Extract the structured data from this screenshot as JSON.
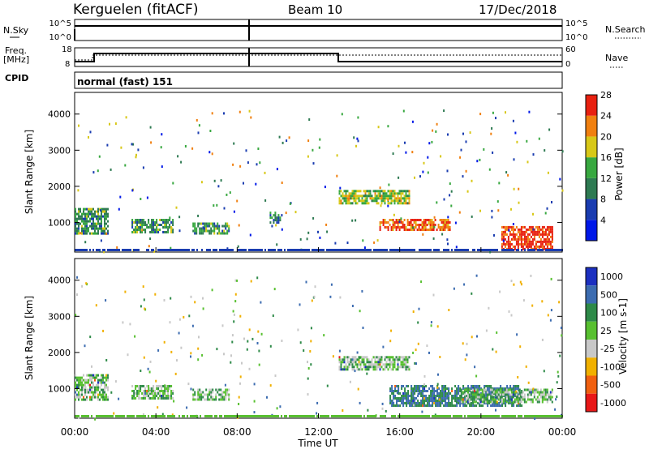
{
  "header": {
    "station": "Kerguelen (fitACF)",
    "beam": "Beam 10",
    "date": "17/Dec/2018"
  },
  "top_panel": {
    "nsky_label": "N.Sky",
    "nsky_ticks": [
      "10^5",
      "10^0"
    ],
    "nsearch_label": "N.Search",
    "nsearch_ticks": [
      "10^5",
      "10^0"
    ],
    "freq_label_line1": "Freq.",
    "freq_label_line2": "[MHz]",
    "freq_ticks": [
      "18",
      "8"
    ],
    "nave_label": "Nave",
    "nave_ticks": [
      "60",
      "0"
    ],
    "cpid_label": "CPID",
    "cpid_value": "normal (fast) 151"
  },
  "chart_data": [
    {
      "type": "heatmap",
      "name": "power",
      "ylabel": "Slant Range [km]",
      "ylim": [
        180,
        4600
      ],
      "yticks": [
        1000,
        2000,
        3000,
        4000
      ],
      "xlim": [
        0,
        24
      ],
      "colorbar": {
        "label": "Power [dB]",
        "ticks": [
          "4",
          "8",
          "12",
          "16",
          "20",
          "24",
          "28"
        ],
        "colors": [
          "#0018e8",
          "#1a3cb0",
          "#2e7a52",
          "#38a840",
          "#d8c818",
          "#f08010",
          "#e82010"
        ]
      },
      "regions": [
        {
          "t0": 0.0,
          "t1": 1.6,
          "r0": 700,
          "r1": 1400,
          "level": 14
        },
        {
          "t0": 2.8,
          "t1": 4.8,
          "r0": 700,
          "r1": 1100,
          "level": 14
        },
        {
          "t0": 5.8,
          "t1": 7.6,
          "r0": 700,
          "r1": 1000,
          "level": 14
        },
        {
          "t0": 9.6,
          "t1": 10.2,
          "r0": 1000,
          "r1": 1300,
          "level": 12
        },
        {
          "t0": 13.0,
          "t1": 16.5,
          "r0": 1500,
          "r1": 1900,
          "level": 18
        },
        {
          "t0": 15.0,
          "t1": 18.5,
          "r0": 800,
          "r1": 1100,
          "level": 26
        },
        {
          "t0": 21.0,
          "t1": 23.5,
          "r0": 250,
          "r1": 900,
          "level": 28
        }
      ]
    },
    {
      "type": "heatmap",
      "name": "velocity",
      "ylabel": "Slant Range [km]",
      "xlabel": "Time UT",
      "ylim": [
        180,
        4600
      ],
      "yticks": [
        1000,
        2000,
        3000,
        4000
      ],
      "xlim": [
        0,
        24
      ],
      "xticks": [
        "00:00",
        "04:00",
        "08:00",
        "12:00",
        "16:00",
        "20:00",
        "00:00"
      ],
      "colorbar": {
        "label": "Velocity [m s-1]",
        "ticks": [
          "1000",
          "500",
          "100",
          "25",
          "-25",
          "-100",
          "-500",
          "-1000"
        ],
        "colors": [
          "#1c30c0",
          "#3c6cb0",
          "#2e8a48",
          "#58c030",
          "#c8c8c8",
          "#f0b000",
          "#f06010",
          "#e81818"
        ]
      },
      "regions": [
        {
          "t0": 0.0,
          "t1": 1.6,
          "r0": 700,
          "r1": 1400,
          "level": 0
        },
        {
          "t0": 2.8,
          "t1": 4.8,
          "r0": 700,
          "r1": 1100,
          "level": 0
        },
        {
          "t0": 5.8,
          "t1": 7.6,
          "r0": 700,
          "r1": 1000,
          "level": 0
        },
        {
          "t0": 13.0,
          "t1": 16.5,
          "r0": 1500,
          "r1": 1900,
          "level": 0
        },
        {
          "t0": 15.5,
          "t1": 22.0,
          "r0": 500,
          "r1": 1100,
          "level": 100
        },
        {
          "t0": 19.0,
          "t1": 23.5,
          "r0": 600,
          "r1": 1000,
          "level": 0
        }
      ]
    }
  ]
}
